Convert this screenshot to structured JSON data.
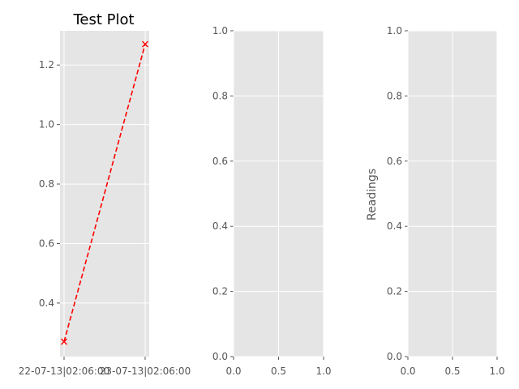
{
  "chart_data": [
    {
      "type": "line",
      "title": "Test Plot",
      "xlabel": "",
      "ylabel": "",
      "x_ticks": [
        "22-07-13|02:06:00",
        "23-07-13|02:06:00"
      ],
      "y_ticks": [
        "0.4",
        "0.6",
        "0.8",
        "1.0",
        "1.2"
      ],
      "ylim": [
        0.22,
        1.315
      ],
      "grid": true,
      "series": [
        {
          "x": [
            "22-07-13|02:06:00",
            "23-07-13|02:06:00"
          ],
          "values": [
            0.27,
            1.27
          ],
          "color": "#ff0000",
          "linestyle": "dashed",
          "marker": "x"
        }
      ]
    },
    {
      "type": "line",
      "title": "",
      "xlabel": "",
      "ylabel": "",
      "xlim": [
        0,
        1
      ],
      "ylim": [
        0,
        1
      ],
      "x_ticks": [
        "0.0",
        "0.5",
        "1.0"
      ],
      "y_ticks": [
        "0.0",
        "0.2",
        "0.4",
        "0.6",
        "0.8",
        "1.0"
      ],
      "grid": true,
      "series": []
    },
    {
      "type": "line",
      "title": "",
      "xlabel": "",
      "ylabel": "Readings",
      "xlim": [
        0,
        1
      ],
      "ylim": [
        0,
        1
      ],
      "x_ticks": [
        "0.0",
        "0.5",
        "1.0"
      ],
      "y_ticks": [
        "0.0",
        "0.2",
        "0.4",
        "0.6",
        "0.8",
        "1.0"
      ],
      "grid": true,
      "series": []
    }
  ],
  "colors": {
    "axes_background": "#e5e5e5",
    "grid": "#ffffff",
    "tick_text": "#555555",
    "series": "#ff0000"
  }
}
